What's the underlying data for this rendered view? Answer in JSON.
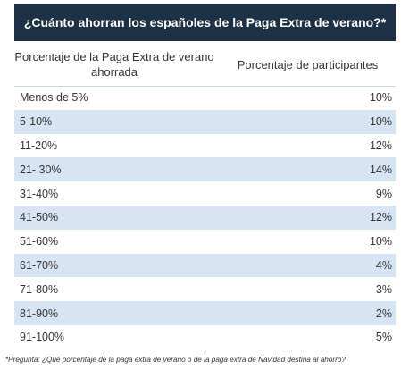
{
  "title": "¿Cuánto ahorran los españoles de la Paga Extra de verano?*",
  "columns": {
    "range_header": "Porcentaje de la Paga Extra de verano ahorrada",
    "share_header": "Porcentaje de participantes"
  },
  "rows": [
    {
      "range": "Menos de 5%",
      "share": "10%"
    },
    {
      "range": "5-10%",
      "share": "10%"
    },
    {
      "range": "11-20%",
      "share": "12%"
    },
    {
      "range": "21- 30%",
      "share": "14%"
    },
    {
      "range": "31-40%",
      "share": "9%"
    },
    {
      "range": "41-50%",
      "share": "12%"
    },
    {
      "range": "51-60%",
      "share": "10%"
    },
    {
      "range": "61-70%",
      "share": "4%"
    },
    {
      "range": "71-80%",
      "share": "3%"
    },
    {
      "range": "81-90%",
      "share": "2%"
    },
    {
      "range": "91-100%",
      "share": "5%"
    }
  ],
  "footnote": "*Pregunta: ¿Qué porcentaje de la paga extra de verano o de la paga extra de Navidad destina al ahorro?",
  "colors": {
    "header_bg": "#1c3146",
    "stripe": "#d6e4f3"
  }
}
